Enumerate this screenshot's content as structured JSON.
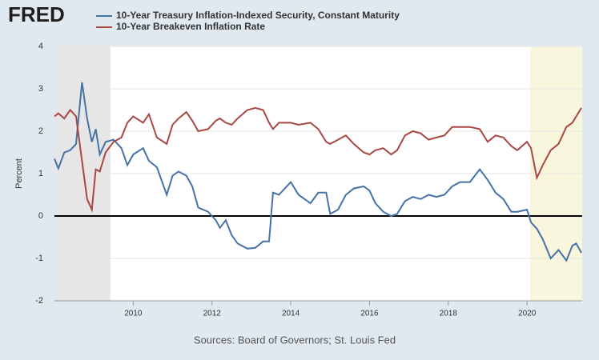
{
  "chart_data": {
    "type": "line",
    "logo": "FRED",
    "y_label": "Percent",
    "source": "Sources: Board of Governors; St. Louis Fed",
    "x": [
      2008.0,
      2008.1,
      2008.25,
      2008.4,
      2008.55,
      2008.7,
      2008.83,
      2008.95,
      2009.05,
      2009.15,
      2009.3,
      2009.5,
      2009.7,
      2009.85,
      2010.0,
      2010.25,
      2010.4,
      2010.6,
      2010.85,
      2011.0,
      2011.15,
      2011.35,
      2011.5,
      2011.65,
      2011.9,
      2012.1,
      2012.2,
      2012.35,
      2012.5,
      2012.65,
      2012.9,
      2013.1,
      2013.3,
      2013.45,
      2013.55,
      2013.7,
      2013.85,
      2014.0,
      2014.2,
      2014.5,
      2014.7,
      2014.9,
      2015.0,
      2015.2,
      2015.4,
      2015.6,
      2015.85,
      2016.0,
      2016.15,
      2016.35,
      2016.55,
      2016.7,
      2016.9,
      2017.1,
      2017.3,
      2017.5,
      2017.7,
      2017.9,
      2018.1,
      2018.3,
      2018.55,
      2018.8,
      2019.0,
      2019.2,
      2019.4,
      2019.6,
      2019.75,
      2020.0,
      2020.1,
      2020.25,
      2020.4,
      2020.6,
      2020.8,
      2021.0,
      2021.15,
      2021.25,
      2021.38
    ],
    "series": [
      {
        "name": "10-Year Treasury Inflation-Indexed Security, Constant Maturity",
        "color": "#4572a7",
        "values": [
          1.35,
          1.12,
          1.5,
          1.55,
          1.7,
          3.15,
          2.3,
          1.75,
          2.05,
          1.45,
          1.75,
          1.8,
          1.6,
          1.2,
          1.45,
          1.6,
          1.3,
          1.15,
          0.5,
          0.95,
          1.05,
          0.95,
          0.7,
          0.2,
          0.1,
          -0.1,
          -0.28,
          -0.1,
          -0.45,
          -0.65,
          -0.77,
          -0.75,
          -0.6,
          -0.6,
          0.55,
          0.5,
          0.65,
          0.8,
          0.5,
          0.3,
          0.55,
          0.55,
          0.05,
          0.15,
          0.5,
          0.65,
          0.7,
          0.6,
          0.3,
          0.1,
          0.0,
          0.05,
          0.35,
          0.45,
          0.4,
          0.5,
          0.45,
          0.5,
          0.7,
          0.8,
          0.8,
          1.1,
          0.85,
          0.55,
          0.4,
          0.1,
          0.1,
          0.15,
          -0.15,
          -0.3,
          -0.55,
          -1.0,
          -0.8,
          -1.05,
          -0.7,
          -0.65,
          -0.87
        ]
      },
      {
        "name": "10-Year Breakeven Inflation Rate",
        "color": "#aa4643",
        "values": [
          2.35,
          2.42,
          2.3,
          2.5,
          2.35,
          1.3,
          0.4,
          0.15,
          1.1,
          1.05,
          1.5,
          1.75,
          1.85,
          2.2,
          2.35,
          2.2,
          2.4,
          1.85,
          1.7,
          2.15,
          2.3,
          2.45,
          2.25,
          2.0,
          2.05,
          2.25,
          2.3,
          2.2,
          2.15,
          2.3,
          2.5,
          2.55,
          2.5,
          2.2,
          2.05,
          2.2,
          2.2,
          2.2,
          2.15,
          2.2,
          2.05,
          1.75,
          1.7,
          1.8,
          1.9,
          1.7,
          1.5,
          1.45,
          1.55,
          1.6,
          1.45,
          1.55,
          1.9,
          2.0,
          1.95,
          1.8,
          1.85,
          1.9,
          2.1,
          2.1,
          2.1,
          2.05,
          1.75,
          1.9,
          1.85,
          1.65,
          1.55,
          1.75,
          1.6,
          0.9,
          1.2,
          1.55,
          1.7,
          2.1,
          2.2,
          2.35,
          2.55
        ]
      }
    ],
    "shaded_periods": [
      [
        2008.0,
        2009.42
      ],
      [
        2020.08,
        2021.4
      ]
    ],
    "xlim": [
      2008.0,
      2021.4
    ],
    "xticks": [
      2010,
      2012,
      2014,
      2016,
      2018,
      2020
    ],
    "ylim": [
      -2,
      4
    ],
    "yticks": [
      -2,
      -1,
      0,
      1,
      2,
      3,
      4
    ],
    "grid": true
  }
}
